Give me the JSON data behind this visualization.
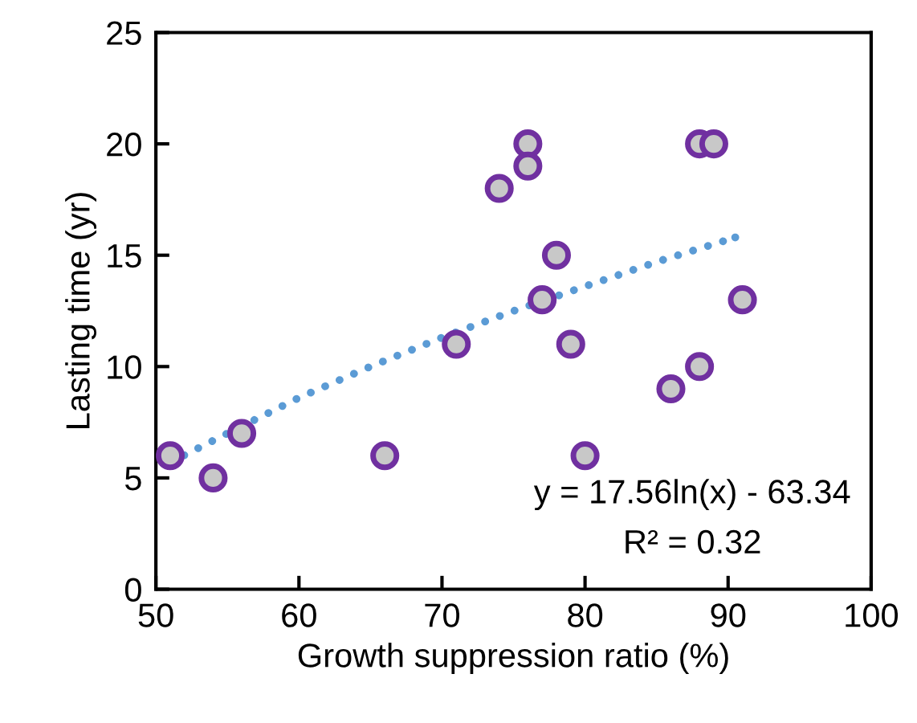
{
  "chart_data": {
    "type": "scatter",
    "xlabel": "Growth suppression ratio (%)",
    "ylabel": "Lasting time (yr)",
    "series": [
      {
        "color": "#7030a0",
        "marker": "circle",
        "x": [
          51,
          54,
          56,
          66,
          71,
          74,
          76,
          76,
          77,
          78,
          79,
          80,
          86,
          88,
          88,
          89,
          91
        ],
        "values": [
          6,
          5,
          7,
          6,
          11,
          18,
          20,
          19,
          13,
          15,
          11,
          6,
          9,
          10,
          20,
          20,
          13
        ]
      },
      {
        "type": "line",
        "color": "#5b9bd5",
        "line_style": "dotted",
        "x": [
          51,
          55,
          60,
          65,
          70,
          75,
          80,
          85,
          90.5
        ],
        "values": [
          5.7,
          7.0,
          8.6,
          10.0,
          11.3,
          12.5,
          13.6,
          14.7,
          15.8
        ]
      }
    ],
    "annotations": [
      {
        "text": "y = 17.56ln(x) - 63.34"
      },
      {
        "text": "R² = 0.32"
      }
    ],
    "xlim": [
      50,
      100
    ],
    "xticks": [
      50,
      60,
      70,
      80,
      90,
      100
    ],
    "ylim": [
      0,
      25
    ],
    "yticks": [
      0,
      5,
      10,
      15,
      20,
      25
    ],
    "grid": false,
    "legend": false
  }
}
